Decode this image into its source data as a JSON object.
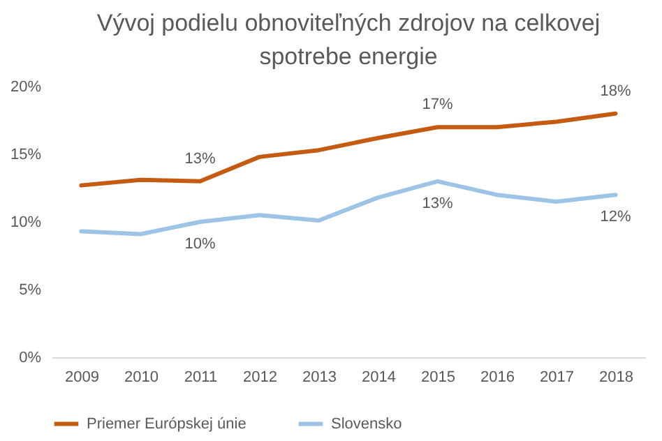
{
  "chart_data": {
    "type": "line",
    "title": "Vývoj podielu obnoviteľných zdrojov na celkovej\nspotrebe energie",
    "categories": [
      "2009",
      "2010",
      "2011",
      "2012",
      "2013",
      "2014",
      "2015",
      "2016",
      "2017",
      "2018"
    ],
    "series": [
      {
        "name": "Priemer Európskej únie",
        "color": "#c55a11",
        "values": [
          12.7,
          13.1,
          13,
          14.8,
          15.3,
          16.2,
          17,
          17.0,
          17.4,
          18
        ],
        "value_labels": [
          null,
          null,
          "13%",
          null,
          null,
          null,
          "17%",
          null,
          null,
          "18%"
        ]
      },
      {
        "name": "Slovensko",
        "color": "#9dc3e6",
        "values": [
          9.3,
          9.1,
          10,
          10.5,
          10.1,
          11.8,
          13,
          12.0,
          11.5,
          12
        ],
        "value_labels": [
          null,
          null,
          "10%",
          null,
          null,
          null,
          "13%",
          null,
          null,
          "12%"
        ]
      }
    ],
    "ylim": [
      0,
      20
    ],
    "yticks": [
      {
        "value": 0,
        "label": "0%"
      },
      {
        "value": 5,
        "label": "5%"
      },
      {
        "value": 10,
        "label": "10%"
      },
      {
        "value": 15,
        "label": "15%"
      },
      {
        "value": 20,
        "label": "20%"
      }
    ],
    "grid": false,
    "legend": "bottom",
    "marker": "none",
    "line_style": "solid"
  }
}
